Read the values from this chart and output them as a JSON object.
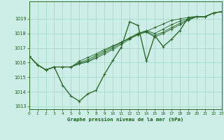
{
  "background_color": "#cceee6",
  "grid_color": "#aaddcc",
  "line_color": "#2d6b2d",
  "text_color": "#1a5c1a",
  "xlabel": "Graphe pression niveau de la mer (hPa)",
  "xlim": [
    0,
    23
  ],
  "ylim": [
    1012.8,
    1020.2
  ],
  "ytick_vals": [
    1013,
    1014,
    1015,
    1016,
    1017,
    1018,
    1019
  ],
  "xtick_vals": [
    0,
    1,
    2,
    3,
    4,
    5,
    6,
    7,
    8,
    9,
    10,
    11,
    12,
    13,
    14,
    15,
    16,
    17,
    18,
    19,
    20,
    21,
    22,
    23
  ],
  "series": [
    [
      1016.45,
      1015.85,
      1015.5,
      1015.7,
      1014.45,
      1013.7,
      1013.35,
      1013.85,
      1014.1,
      1015.2,
      1016.15,
      1017.05,
      1018.8,
      1018.55,
      1016.1,
      1017.85,
      1017.1,
      1017.6,
      1018.2,
      1019.1,
      1019.15,
      1019.15,
      1019.4,
      1019.5
    ],
    [
      1016.45,
      1015.85,
      1015.5,
      1015.7,
      1015.7,
      1015.7,
      1016.1,
      1016.35,
      1016.6,
      1016.9,
      1017.15,
      1017.4,
      1017.65,
      1017.9,
      1018.15,
      1018.4,
      1018.65,
      1018.9,
      1019.0,
      1019.1,
      1019.15,
      1019.15,
      1019.4,
      1019.5
    ],
    [
      1016.45,
      1015.85,
      1015.5,
      1015.7,
      1015.7,
      1015.7,
      1016.0,
      1016.2,
      1016.5,
      1016.8,
      1017.1,
      1017.4,
      1017.7,
      1018.0,
      1018.2,
      1018.0,
      1018.3,
      1018.6,
      1018.85,
      1019.0,
      1019.15,
      1019.15,
      1019.4,
      1019.5
    ],
    [
      1016.45,
      1015.85,
      1015.5,
      1015.7,
      1015.7,
      1015.7,
      1015.95,
      1016.1,
      1016.4,
      1016.7,
      1017.0,
      1017.35,
      1017.7,
      1018.0,
      1018.15,
      1017.85,
      1018.1,
      1018.4,
      1018.7,
      1018.95,
      1019.15,
      1019.15,
      1019.4,
      1019.5
    ],
    [
      1016.45,
      1015.85,
      1015.5,
      1015.7,
      1015.7,
      1015.7,
      1015.9,
      1016.05,
      1016.3,
      1016.6,
      1016.9,
      1017.25,
      1017.6,
      1017.95,
      1018.1,
      1017.75,
      1018.0,
      1018.3,
      1018.6,
      1018.9,
      1019.15,
      1019.15,
      1019.4,
      1019.5
    ]
  ]
}
